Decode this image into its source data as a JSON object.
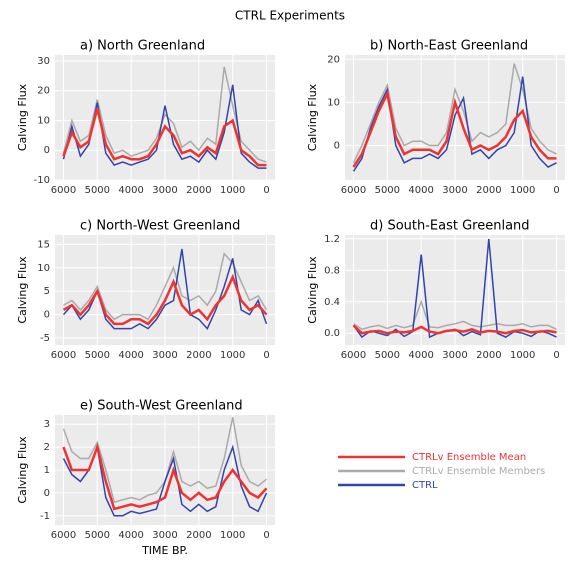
{
  "title": "CTRL Experiments",
  "legend": [
    {
      "name": "CTRLv Ensemble Mean",
      "color": "#ee3333"
    },
    {
      "name": "CTRLv Ensemble Members",
      "color": "#aaaaaa"
    },
    {
      "name": "CTRL",
      "color": "#3344aa"
    }
  ],
  "chart_data": [
    {
      "type": "line",
      "title": "a) North Greenland",
      "ylabel": "Calving Flux",
      "x": [
        6000,
        5750,
        5500,
        5250,
        5000,
        4750,
        4500,
        4250,
        4000,
        3750,
        3500,
        3250,
        3000,
        2750,
        2500,
        2250,
        2000,
        1750,
        1500,
        1250,
        1000,
        750,
        500,
        250,
        0
      ],
      "xlim": [
        6250,
        -250
      ],
      "xticks": [
        6000,
        5000,
        4000,
        3000,
        2000,
        1000,
        0
      ],
      "ylim": [
        -10,
        32
      ],
      "yticks": [
        -10,
        0,
        10,
        20,
        30
      ],
      "grid": true,
      "series": [
        {
          "color": "#aaaaaa",
          "values": [
            -1,
            10,
            3,
            5,
            17,
            5,
            -1,
            0,
            -2,
            -1,
            0,
            4,
            12,
            9,
            1,
            3,
            0,
            4,
            2,
            28,
            15,
            3,
            0,
            -3,
            -4
          ]
        },
        {
          "color": "#3344aa",
          "values": [
            -3,
            8,
            -2,
            2,
            16,
            -1,
            -5,
            -4,
            -5,
            -4,
            -3,
            0,
            15,
            2,
            -3,
            -2,
            -4,
            0,
            -3,
            6,
            22,
            -1,
            -4,
            -6,
            -6
          ]
        },
        {
          "color": "#ee3333",
          "values": [
            -2,
            6,
            1,
            3,
            14,
            2,
            -3,
            -2,
            -3,
            -3,
            -2,
            2,
            8,
            5,
            -1,
            0,
            -2,
            1,
            -1,
            8,
            10,
            0,
            -2,
            -5,
            -5
          ]
        }
      ]
    },
    {
      "type": "line",
      "title": "b) North-East Greenland",
      "ylabel": "Calving Flux",
      "x": [
        6000,
        5750,
        5500,
        5250,
        5000,
        4750,
        4500,
        4250,
        4000,
        3750,
        3500,
        3250,
        3000,
        2750,
        2500,
        2250,
        2000,
        1750,
        1500,
        1250,
        1000,
        750,
        500,
        250,
        0
      ],
      "xlim": [
        6250,
        -250
      ],
      "xticks": [
        6000,
        5000,
        4000,
        3000,
        2000,
        1000,
        0
      ],
      "ylim": [
        -8,
        21
      ],
      "yticks": [
        0,
        10,
        20
      ],
      "grid": true,
      "series": [
        {
          "color": "#aaaaaa",
          "values": [
            -4,
            0,
            5,
            10,
            14,
            4,
            0,
            1,
            1,
            0,
            0,
            3,
            13,
            8,
            1,
            3,
            2,
            3,
            5,
            19,
            13,
            4,
            1,
            -1,
            -2
          ]
        },
        {
          "color": "#3344aa",
          "values": [
            -6,
            -3,
            4,
            9,
            13,
            0,
            -4,
            -3,
            -3,
            -2,
            -3,
            -1,
            7,
            11,
            -2,
            -1,
            -3,
            -1,
            0,
            3,
            16,
            0,
            -3,
            -5,
            -4
          ]
        },
        {
          "color": "#ee3333",
          "values": [
            -5,
            -2,
            3,
            8,
            12,
            2,
            -2,
            -1,
            -1,
            -1,
            -2,
            1,
            10,
            4,
            -1,
            0,
            -1,
            0,
            2,
            6,
            8,
            2,
            -1,
            -3,
            -3
          ]
        }
      ]
    },
    {
      "type": "line",
      "title": "c) North-West Greenland",
      "ylabel": "Calving Flux",
      "x": [
        6000,
        5750,
        5500,
        5250,
        5000,
        4750,
        4500,
        4250,
        4000,
        3750,
        3500,
        3250,
        3000,
        2750,
        2500,
        2250,
        2000,
        1750,
        1500,
        1250,
        1000,
        750,
        500,
        250,
        0
      ],
      "xlim": [
        6250,
        -250
      ],
      "xticks": [
        6000,
        5000,
        4000,
        3000,
        2000,
        1000,
        0
      ],
      "ylim": [
        -6.5,
        17
      ],
      "yticks": [
        -5,
        0,
        5,
        10,
        15
      ],
      "grid": true,
      "series": [
        {
          "color": "#aaaaaa",
          "values": [
            2,
            3,
            1,
            3,
            6,
            1,
            -1,
            0,
            0,
            0,
            -1,
            2,
            6,
            10,
            4,
            3,
            4,
            2,
            5,
            13,
            11,
            7,
            3,
            4,
            1
          ]
        },
        {
          "color": "#3344aa",
          "values": [
            0,
            2,
            -1,
            1,
            5,
            -1,
            -3,
            -3,
            -3,
            -2,
            -3,
            -1,
            2,
            3,
            14,
            0,
            -1,
            -3,
            1,
            6,
            12,
            1,
            0,
            3,
            -2
          ]
        },
        {
          "color": "#ee3333",
          "values": [
            1,
            2,
            0,
            2,
            5,
            0,
            -2,
            -2,
            -1,
            -1,
            -2,
            0,
            3,
            7,
            2,
            0,
            1,
            -1,
            2,
            4,
            8,
            3,
            1,
            2,
            0
          ]
        }
      ]
    },
    {
      "type": "line",
      "title": "d) South-East Greenland",
      "ylabel": "Calving Flux",
      "x": [
        6000,
        5750,
        5500,
        5250,
        5000,
        4750,
        4500,
        4250,
        4000,
        3750,
        3500,
        3250,
        3000,
        2750,
        2500,
        2250,
        2000,
        1750,
        1500,
        1250,
        1000,
        750,
        500,
        250,
        0
      ],
      "xlim": [
        6250,
        -250
      ],
      "xticks": [
        6000,
        5000,
        4000,
        3000,
        2000,
        1000,
        0
      ],
      "ylim": [
        -0.15,
        1.25
      ],
      "yticks": [
        {
          "value": 0,
          "label": "0.0"
        },
        0.4,
        0.8,
        1.2
      ],
      "grid": true,
      "series": [
        {
          "color": "#aaaaaa",
          "values": [
            0.12,
            0.05,
            0.08,
            0.1,
            0.06,
            0.1,
            0.07,
            0.1,
            0.4,
            0.08,
            0.07,
            0.1,
            0.12,
            0.15,
            0.1,
            0.08,
            0.1,
            0.12,
            0.1,
            0.1,
            0.12,
            0.08,
            0.1,
            0.1,
            0.05
          ]
        },
        {
          "color": "#3344aa",
          "values": [
            0.1,
            -0.05,
            0.03,
            0,
            -0.03,
            0.05,
            -0.04,
            0.02,
            1.0,
            -0.05,
            0,
            0.03,
            0.05,
            -0.03,
            0.02,
            -0.02,
            1.2,
            0,
            -0.05,
            0.02,
            0,
            -0.04,
            0.03,
            0,
            -0.05
          ]
        },
        {
          "color": "#ee3333",
          "values": [
            0.1,
            0,
            0.02,
            0.03,
            0,
            0.02,
            0.01,
            0.03,
            0.08,
            0.02,
            0,
            0.03,
            0.04,
            0.02,
            0.05,
            0.01,
            0.03,
            0.02,
            0,
            0.03,
            0.04,
            0.01,
            0.02,
            0.03,
            0.01
          ]
        }
      ]
    },
    {
      "type": "line",
      "title": "e) South-West Greenland",
      "ylabel": "Calving Flux",
      "xlabel": "TIME BP.",
      "x": [
        6000,
        5750,
        5500,
        5250,
        5000,
        4750,
        4500,
        4250,
        4000,
        3750,
        3500,
        3250,
        3000,
        2750,
        2500,
        2250,
        2000,
        1750,
        1500,
        1250,
        1000,
        750,
        500,
        250,
        0
      ],
      "xlim": [
        6250,
        -250
      ],
      "xticks": [
        6000,
        5000,
        4000,
        3000,
        2000,
        1000,
        0
      ],
      "ylim": [
        -1.4,
        3.4
      ],
      "yticks": [
        -1,
        0,
        1,
        2,
        3
      ],
      "grid": true,
      "series": [
        {
          "color": "#aaaaaa",
          "values": [
            2.8,
            1.8,
            1.5,
            1.5,
            2.2,
            1,
            -0.4,
            -0.3,
            -0.2,
            -0.3,
            -0.1,
            0,
            0.5,
            1.8,
            0.5,
            0.3,
            0.5,
            0.2,
            0.3,
            1.5,
            3.3,
            1.2,
            0.5,
            0.3,
            0.6
          ]
        },
        {
          "color": "#3344aa",
          "values": [
            1.5,
            0.8,
            0.5,
            1,
            2,
            -0.2,
            -1,
            -1,
            -0.8,
            -0.9,
            -0.8,
            -0.7,
            0.5,
            1.5,
            -0.5,
            -0.8,
            -0.5,
            -0.8,
            -0.6,
            1,
            2,
            0.3,
            -0.6,
            -0.8,
            0
          ]
        },
        {
          "color": "#ee3333",
          "values": [
            2,
            1,
            1,
            1,
            2,
            0.5,
            -0.7,
            -0.6,
            -0.5,
            -0.6,
            -0.5,
            -0.4,
            -0.2,
            1,
            0,
            -0.3,
            0,
            -0.3,
            -0.2,
            0.5,
            1,
            0.5,
            0,
            -0.2,
            0.2
          ]
        }
      ]
    }
  ]
}
